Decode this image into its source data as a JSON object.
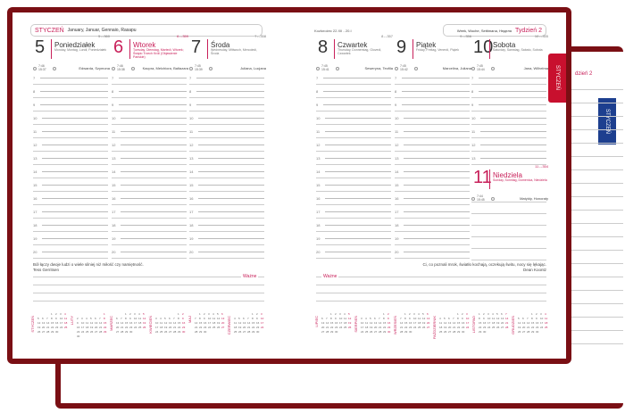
{
  "month": "STYCZEŃ",
  "month_names": "January, Januar, Gennaio, Rasapu",
  "week_label": "Tydzień 2",
  "week_names": "Week, Woche, Settimana, Неделя",
  "holiday_note": "Kozłorożec 22.XII - 20.I",
  "back_tab": "STYCZEŃ",
  "back_week": "dzień 2",
  "days_left": [
    {
      "num": "5",
      "name": "Poniedziałek",
      "sub": "Monday, Montag, Lundi, Poniedziałek",
      "count": "5↔360",
      "sun": "7:46 15:37",
      "names": "Edwarda, Szymona",
      "red": false
    },
    {
      "num": "6",
      "name": "Wtorek",
      "sub": "Tuesday, Dienstag, Martedì, Wtorek; Święto Trzech Króli (Objawienie Pańskie)",
      "count": "6↔359",
      "sun": "7:46 15:38",
      "names": "Kacpra, Melchiora, Baltazara",
      "red": true
    },
    {
      "num": "7",
      "name": "Środa",
      "sub": "Wednesday, Mittwoch, Mercoledì, Środa",
      "count": "7↔358",
      "sun": "7:45 15:39",
      "names": "Juliana, Lucjana",
      "red": false
    }
  ],
  "days_right": [
    {
      "num": "8",
      "name": "Czwartek",
      "sub": "Thursday, Donnerstag, Giovedì, Czwartek",
      "count": "8↔357",
      "sun": "7:45 15:41",
      "names": "Seweryna, Teofila",
      "red": false
    },
    {
      "num": "9",
      "name": "Piątek",
      "sub": "Friday, Freitag, Venerdì, Piątek",
      "count": "9↔356",
      "sun": "7:45 15:42",
      "names": "Marcelina, Juliana",
      "red": false
    },
    {
      "num": "10",
      "name": "Sobota",
      "sub": "Saturday, Samstag, Sabato, Sobota",
      "count": "10↔355",
      "sun": "7:45 15:44",
      "names": "Jana, Wilhelma",
      "red": false
    }
  ],
  "sunday": {
    "num": "11",
    "name": "Niedziela",
    "sub": "Sunday, Sonntag, Domenica, Niedziela",
    "count": "11↔354",
    "sun": "7:44 15:45",
    "names": "Matyldy, Honoraty"
  },
  "hours": [
    "7",
    "8",
    "9",
    "10",
    "11",
    "12",
    "13",
    "14",
    "15",
    "16",
    "17",
    "18",
    "19",
    "20"
  ],
  "quote_left": {
    "text": "Ból łączy dwoje ludzi o wiele silniej niż miłość czy namiętność.",
    "author": "Tess Gerritsen"
  },
  "quote_right": {
    "text": "Ci, co poznali mrok, światło kochają, oczekują świtu, nocy się lękając.",
    "author": "Dean Koontz"
  },
  "important_label": "Ważne",
  "weekdays": [
    "Pn",
    "Wt",
    "Śr",
    "Cz",
    "Pt",
    "So",
    "Nd"
  ],
  "months_left": [
    "STYCZEŃ",
    "LUTY",
    "MARZEC",
    "KWIECIEŃ",
    "MAJ",
    "CZERWIEC"
  ],
  "months_right": [
    "LIPIEC",
    "SIERPIEŃ",
    "WRZESIEŃ",
    "PAŹDZIERNIK",
    "LISTOPAD",
    "GRUDZIEŃ"
  ],
  "colors": {
    "cover": "#7a0f14",
    "accent": "#c8205a",
    "tab_red": "#c8102e",
    "tab_blue": "#1d3f8f"
  }
}
